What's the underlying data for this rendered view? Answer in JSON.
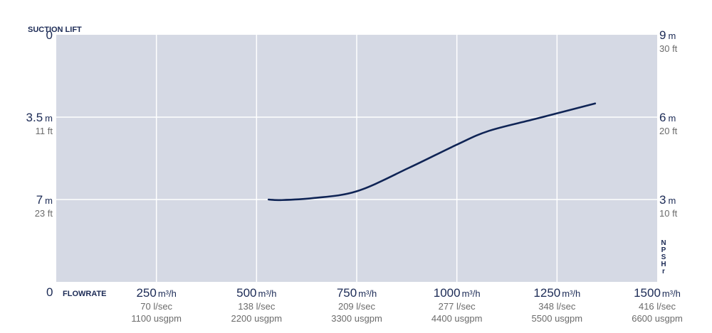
{
  "chart_data": {
    "type": "line",
    "left_axis": {
      "title": "SUCTION LIFT",
      "ticks": [
        {
          "value": 0,
          "main": "0",
          "unit": "",
          "sub": ""
        },
        {
          "value": 3.5,
          "main": "3.5",
          "unit": "m",
          "sub": "11 ft"
        },
        {
          "value": 7,
          "main": "7",
          "unit": "m",
          "sub": "23 ft"
        }
      ],
      "range_m": [
        0,
        10.5
      ],
      "inverted": true
    },
    "right_axis": {
      "title": "NPSHr",
      "title_letters": [
        "N",
        "P",
        "S",
        "H",
        "r"
      ],
      "ticks": [
        {
          "value": 9,
          "main": "9",
          "unit": "m",
          "sub": "30 ft"
        },
        {
          "value": 6,
          "main": "6",
          "unit": "m",
          "sub": "20 ft"
        },
        {
          "value": 3,
          "main": "3",
          "unit": "m",
          "sub": "10 ft"
        }
      ],
      "range_m": [
        0,
        9
      ]
    },
    "x_axis": {
      "title": "FLOWRATE",
      "range": [
        0,
        1500
      ],
      "origin_label": "0",
      "ticks": [
        {
          "value": 250,
          "main": "250",
          "unit": "m³/h",
          "sub1": "70 l/sec",
          "sub2": "1100 usgpm"
        },
        {
          "value": 500,
          "main": "500",
          "unit": "m³/h",
          "sub1": "138 l/sec",
          "sub2": "2200 usgpm"
        },
        {
          "value": 750,
          "main": "750",
          "unit": "m³/h",
          "sub1": "209 l/sec",
          "sub2": "3300 usgpm"
        },
        {
          "value": 1000,
          "main": "1000",
          "unit": "m³/h",
          "sub1": "277 l/sec",
          "sub2": "4400 usgpm"
        },
        {
          "value": 1250,
          "main": "1250",
          "unit": "m³/h",
          "sub1": "348 l/sec",
          "sub2": "5500 usgpm"
        },
        {
          "value": 1500,
          "main": "1500",
          "unit": "m³/h",
          "sub1": "416 l/sec",
          "sub2": "6600 usgpm"
        }
      ]
    },
    "series": [
      {
        "values_npshr_m": [
          {
            "x": 530,
            "y": 3.0
          },
          {
            "x": 560,
            "y": 2.98
          },
          {
            "x": 640,
            "y": 3.05
          },
          {
            "x": 750,
            "y": 3.3
          },
          {
            "x": 880,
            "y": 4.15
          },
          {
            "x": 1000,
            "y": 5.0
          },
          {
            "x": 1080,
            "y": 5.5
          },
          {
            "x": 1200,
            "y": 5.95
          },
          {
            "x": 1345,
            "y": 6.5
          }
        ]
      }
    ],
    "grid": true,
    "colors": {
      "plot_background": "#d5d9e4",
      "grid": "#ffffff",
      "line": "#0f2455",
      "axis_text": "#1b2a55",
      "sub_text": "#6b6b6b"
    }
  }
}
